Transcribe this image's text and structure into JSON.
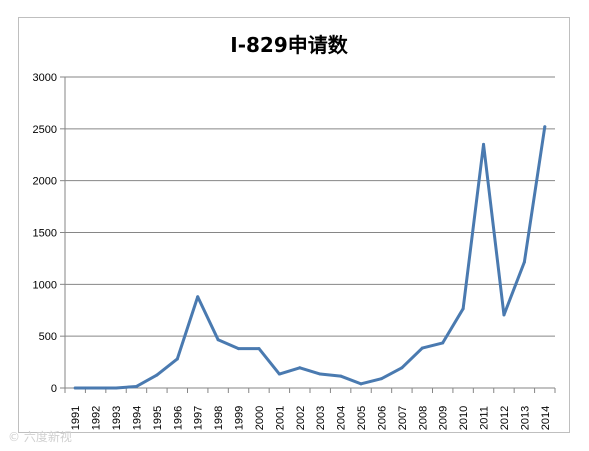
{
  "chart_data": {
    "type": "line",
    "title": "I-829申请数",
    "xlabel": "",
    "ylabel": "",
    "ylim": [
      0,
      3000
    ],
    "yticks": [
      0,
      500,
      1000,
      1500,
      2000,
      2500,
      3000
    ],
    "grid": true,
    "legend": "none",
    "line_color": "#4a7ab0",
    "x": [
      "1991",
      "1992",
      "1993",
      "1994",
      "1995",
      "1996",
      "1997",
      "1998",
      "1999",
      "2000",
      "2001",
      "2002",
      "2003",
      "2004",
      "2005",
      "2006",
      "2007",
      "2008",
      "2009",
      "2010",
      "2011",
      "2012",
      "2013",
      "2014"
    ],
    "series": [
      {
        "values": [
          0,
          0,
          0,
          15,
          125,
          280,
          880,
          465,
          380,
          380,
          135,
          195,
          135,
          115,
          40,
          90,
          195,
          385,
          435,
          765,
          2350,
          705,
          1215,
          2520
        ]
      }
    ]
  },
  "watermark": "© 六度新视"
}
